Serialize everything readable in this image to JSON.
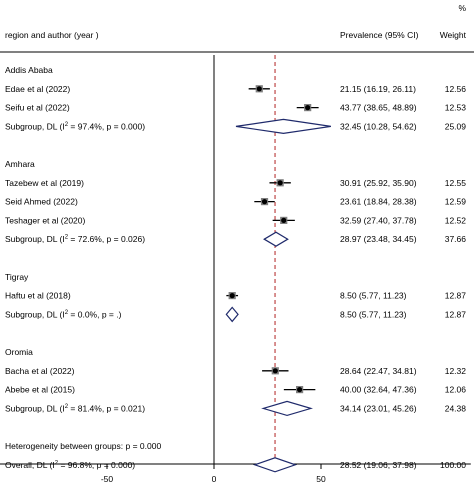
{
  "chart_data": {
    "type": "forest",
    "header": {
      "study_col": "region and author (year )",
      "estimate_col": "Prevalence (95% CI)",
      "weight_col_line1": "%",
      "weight_col_line2": "Weight"
    },
    "xaxis": {
      "ticks": [
        -50,
        0,
        50
      ],
      "tick_labels": [
        "-50",
        "0",
        "50"
      ],
      "range": [
        -100,
        120
      ]
    },
    "reference_line": 0,
    "overall_line": 28.52,
    "rows": [
      {
        "kind": "group",
        "label": "Addis Ababa"
      },
      {
        "kind": "study",
        "label": "Edae et al (2022)",
        "est": 21.15,
        "lo": 16.19,
        "hi": 26.11,
        "ci_text": "21.15 (16.19, 26.11)",
        "weight": "12.56"
      },
      {
        "kind": "study",
        "label": "Seifu et al (2022)",
        "est": 43.77,
        "lo": 38.65,
        "hi": 48.89,
        "ci_text": "43.77 (38.65, 48.89)",
        "weight": "12.53"
      },
      {
        "kind": "subgroup",
        "pre": "Subgroup, DL (I",
        "sup": "2",
        "post": " = 97.4%, p = 0.000)",
        "est": 32.45,
        "lo": 10.28,
        "hi": 54.62,
        "ci_text": "32.45 (10.28, 54.62)",
        "weight": "25.09"
      },
      {
        "kind": "blank"
      },
      {
        "kind": "group",
        "label": "Amhara"
      },
      {
        "kind": "study",
        "label": "Tazebew et al (2019)",
        "est": 30.91,
        "lo": 25.92,
        "hi": 35.9,
        "ci_text": "30.91 (25.92, 35.90)",
        "weight": "12.55"
      },
      {
        "kind": "study",
        "label": "Seid Ahmed (2022)",
        "est": 23.61,
        "lo": 18.84,
        "hi": 28.38,
        "ci_text": "23.61 (18.84, 28.38)",
        "weight": "12.59"
      },
      {
        "kind": "study",
        "label": "Teshager et al (2020)",
        "est": 32.59,
        "lo": 27.4,
        "hi": 37.78,
        "ci_text": "32.59 (27.40, 37.78)",
        "weight": "12.52"
      },
      {
        "kind": "subgroup",
        "pre": "Subgroup, DL (I",
        "sup": "2",
        "post": " = 72.6%, p = 0.026)",
        "est": 28.97,
        "lo": 23.48,
        "hi": 34.45,
        "ci_text": "28.97 (23.48, 34.45)",
        "weight": "37.66"
      },
      {
        "kind": "blank"
      },
      {
        "kind": "group",
        "label": "Tigray"
      },
      {
        "kind": "study",
        "label": "Haftu et al (2018)",
        "est": 8.5,
        "lo": 5.77,
        "hi": 11.23,
        "ci_text": "8.50 (5.77, 11.23)",
        "weight": "12.87"
      },
      {
        "kind": "subgroup",
        "pre": "Subgroup, DL (I",
        "sup": "2",
        "post": " = 0.0%, p = .)",
        "est": 8.5,
        "lo": 5.77,
        "hi": 11.23,
        "ci_text": "8.50 (5.77, 11.23)",
        "weight": "12.87"
      },
      {
        "kind": "blank"
      },
      {
        "kind": "group",
        "label": "Oromia"
      },
      {
        "kind": "study",
        "label": "Bacha et al (2022)",
        "est": 28.64,
        "lo": 22.47,
        "hi": 34.81,
        "ci_text": "28.64 (22.47, 34.81)",
        "weight": "12.32"
      },
      {
        "kind": "study",
        "label": "Abebe et al (2015)",
        "est": 40.0,
        "lo": 32.64,
        "hi": 47.36,
        "ci_text": "40.00 (32.64, 47.36)",
        "weight": "12.06"
      },
      {
        "kind": "subgroup",
        "pre": "Subgroup, DL (I",
        "sup": "2",
        "post": " = 81.4%, p = 0.021)",
        "est": 34.14,
        "lo": 23.01,
        "hi": 45.26,
        "ci_text": "34.14 (23.01, 45.26)",
        "weight": "24.38"
      },
      {
        "kind": "blank"
      },
      {
        "kind": "group",
        "label": "Heterogeneity between groups: p = 0.000"
      },
      {
        "kind": "subgroup",
        "pre": "Overall, DL (I",
        "sup": "2",
        "post": " = 96.8%, p = 0.000)",
        "est": 28.52,
        "lo": 19.06,
        "hi": 37.98,
        "ci_text": "28.52 (19.06, 37.98)",
        "weight": "100.00"
      }
    ],
    "colors": {
      "diamond": "#1f2a6b",
      "dashed_line": "#b22222",
      "axis": "#000000"
    }
  }
}
